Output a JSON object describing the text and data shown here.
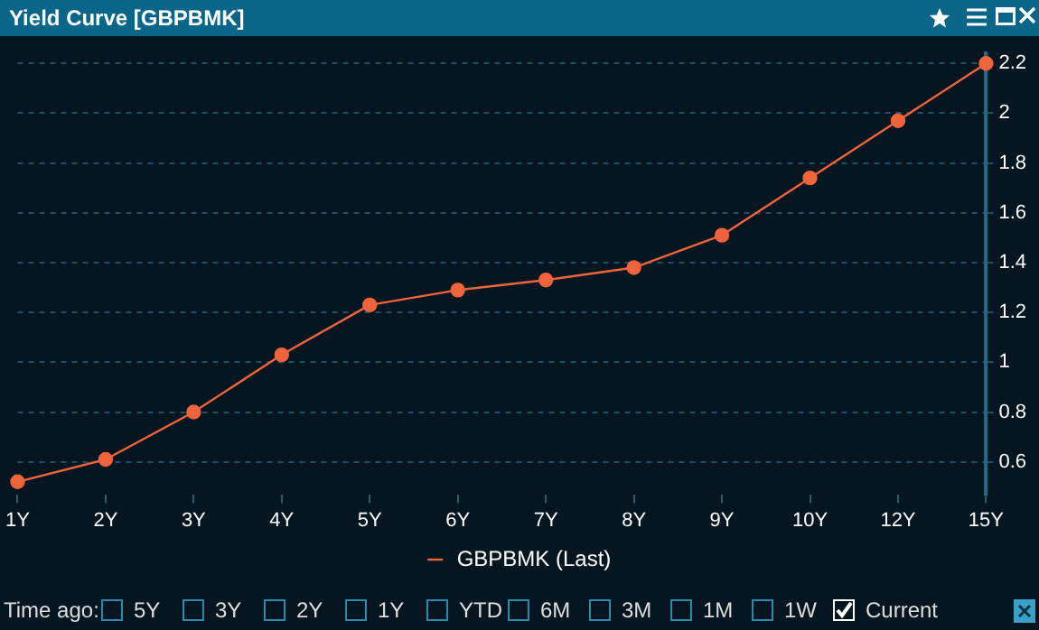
{
  "chart_data": {
    "type": "line",
    "title": "Yield Curve [GBPBMK]",
    "categories": [
      "1Y",
      "2Y",
      "3Y",
      "4Y",
      "5Y",
      "6Y",
      "7Y",
      "8Y",
      "9Y",
      "10Y",
      "12Y",
      "15Y"
    ],
    "series": [
      {
        "name": "GBPBMK (Last)",
        "color": "#f0643c",
        "values": [
          0.52,
          0.61,
          0.8,
          1.03,
          1.23,
          1.29,
          1.33,
          1.38,
          1.51,
          1.74,
          1.97,
          2.2
        ]
      }
    ],
    "ylim": [
      0.47,
      2.24
    ],
    "yticks": [
      0.6,
      0.8,
      1,
      1.2,
      1.4,
      1.6,
      1.8,
      2,
      2.2
    ],
    "grid": "y",
    "legend": "bottom",
    "marker": "circle",
    "line_style": "solid",
    "annotations": [
      "Time ago:",
      "5Y",
      "3Y",
      "2Y",
      "1Y",
      "YTD",
      "6M",
      "3M",
      "1M",
      "1W",
      "Current"
    ]
  }
}
